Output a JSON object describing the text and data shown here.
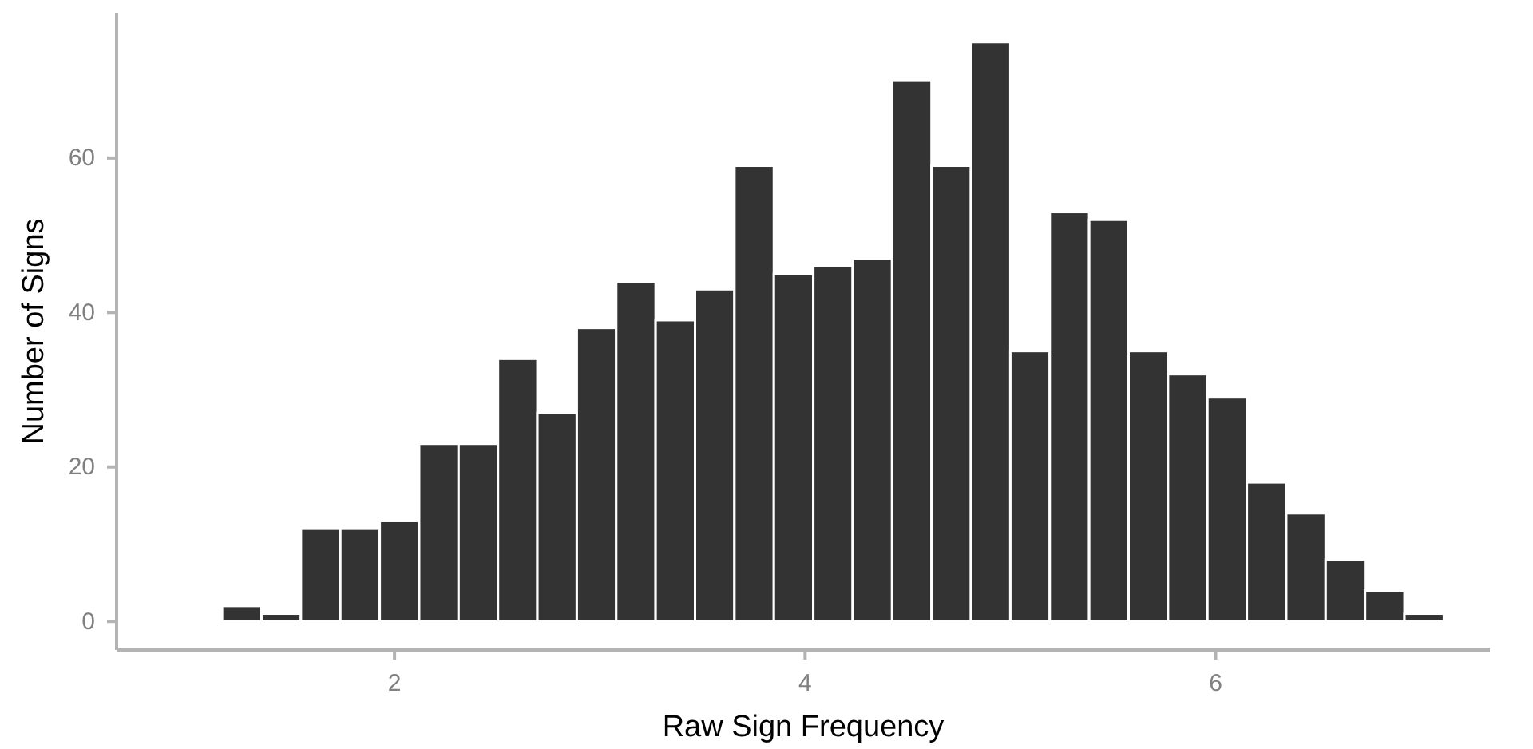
{
  "chart_data": {
    "type": "histogram",
    "xlabel": "Raw Sign Frequency",
    "ylabel": "Number of Signs",
    "bins": [
      1.16,
      1.352,
      1.544,
      1.736,
      1.928,
      2.12,
      2.312,
      2.504,
      2.696,
      2.888,
      3.08,
      3.272,
      3.464,
      3.656,
      3.848,
      4.04,
      4.232,
      4.424,
      4.616,
      4.808,
      5.0,
      5.192,
      5.384,
      5.576,
      5.768,
      5.96,
      6.152,
      6.344,
      6.536,
      6.728,
      6.92,
      7.112
    ],
    "values": [
      2,
      1,
      12,
      12,
      13,
      23,
      23,
      34,
      27,
      38,
      44,
      39,
      43,
      59,
      45,
      46,
      47,
      70,
      59,
      75,
      35,
      53,
      52,
      35,
      32,
      29,
      18,
      14,
      8,
      4,
      1
    ],
    "color": "#333333",
    "xlim": [
      0.646,
      7.336
    ],
    "xticks": [
      2,
      4,
      6
    ],
    "ylim": [
      -3.7,
      78.8
    ],
    "yticks": [
      0,
      20,
      40,
      60
    ],
    "grid": false
  }
}
